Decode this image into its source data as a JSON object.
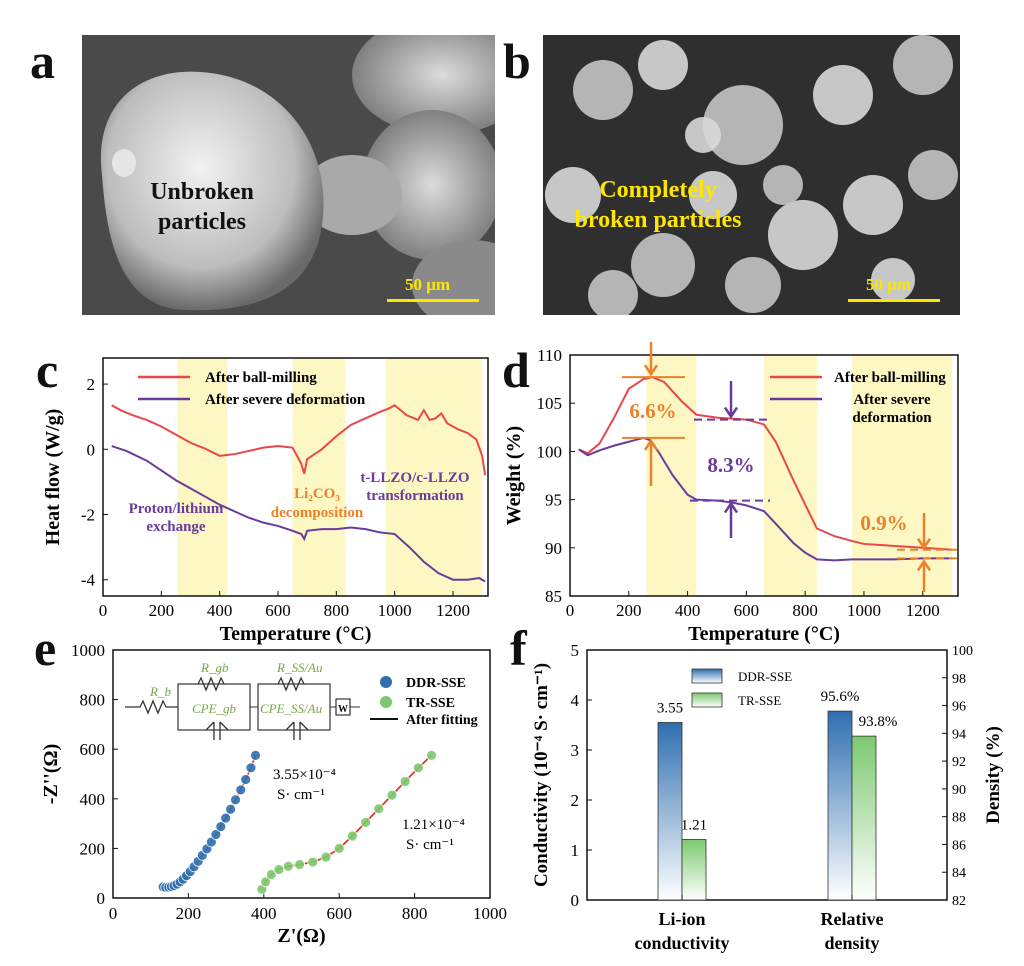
{
  "panels": {
    "a": {
      "letter": "a",
      "label_line1": "Unbroken",
      "label_line2": "particles",
      "scale": "50 μm"
    },
    "b": {
      "letter": "b",
      "label_line1": "Completely",
      "label_line2": "broken particles",
      "scale": "50 μm"
    },
    "c": {
      "letter": "c"
    },
    "d": {
      "letter": "d"
    },
    "e": {
      "letter": "e"
    },
    "f": {
      "letter": "f"
    }
  },
  "colors": {
    "red": "#e8474c",
    "purple": "#6a3b9c",
    "orange": "#e9822b",
    "highlight": "#fdf7c3",
    "blue": "#2f6fb0",
    "green": "#7cc96f",
    "scale_yellow": "#ffe600"
  },
  "chart_data": [
    {
      "panel": "c",
      "type": "line",
      "xlabel": "Temperature (°C)",
      "ylabel": "Heat flow (W/g)",
      "xlim": [
        0,
        1320
      ],
      "ylim": [
        -4.5,
        2.8
      ],
      "xticks": [
        0,
        200,
        400,
        600,
        800,
        1000,
        1200
      ],
      "yticks": [
        2,
        0,
        -2,
        -4
      ],
      "highlight_ranges": [
        [
          255,
          425
        ],
        [
          650,
          830
        ],
        [
          970,
          1300
        ]
      ],
      "annotations": [
        "Proton/lithium",
        "exchange",
        "Li₂CO₃",
        "decomposition",
        "t-LLZO/c-LLZO",
        "transformation"
      ],
      "series": [
        {
          "name": "After ball-milling",
          "color": "#e8474c",
          "x": [
            30,
            60,
            100,
            150,
            200,
            250,
            300,
            350,
            400,
            450,
            500,
            550,
            600,
            650,
            680,
            690,
            700,
            750,
            800,
            850,
            900,
            950,
            980,
            1000,
            1040,
            1080,
            1100,
            1120,
            1140,
            1160,
            1180,
            1200,
            1220,
            1250,
            1280,
            1300,
            1310
          ],
          "y": [
            1.35,
            1.2,
            1.05,
            0.9,
            0.7,
            0.45,
            0.2,
            0.02,
            -0.2,
            -0.15,
            -0.05,
            0.05,
            0.1,
            0.05,
            -0.45,
            -0.75,
            -0.3,
            0.0,
            0.4,
            0.75,
            0.95,
            1.15,
            1.25,
            1.35,
            1.05,
            0.9,
            1.2,
            0.9,
            0.95,
            1.1,
            0.8,
            0.7,
            0.6,
            0.5,
            0.3,
            -0.2,
            -0.8
          ]
        },
        {
          "name": "After severe deformation",
          "color": "#6a3b9c",
          "x": [
            30,
            80,
            150,
            200,
            250,
            300,
            350,
            400,
            450,
            500,
            550,
            600,
            650,
            680,
            690,
            700,
            750,
            800,
            850,
            900,
            950,
            1000,
            1050,
            1100,
            1150,
            1200,
            1250,
            1290,
            1310
          ],
          "y": [
            0.1,
            -0.05,
            -0.35,
            -0.65,
            -0.95,
            -1.2,
            -1.45,
            -1.7,
            -1.9,
            -2.1,
            -2.25,
            -2.35,
            -2.5,
            -2.6,
            -2.75,
            -2.5,
            -2.45,
            -2.45,
            -2.4,
            -2.45,
            -2.55,
            -2.6,
            -3.0,
            -3.45,
            -3.8,
            -4.0,
            -4.0,
            -3.95,
            -4.05
          ]
        }
      ]
    },
    {
      "panel": "d",
      "type": "line",
      "xlabel": "Temperature (°C)",
      "ylabel": "Weight (%)",
      "xlim": [
        0,
        1320
      ],
      "ylim": [
        85,
        110
      ],
      "xticks": [
        0,
        200,
        400,
        600,
        800,
        1000,
        1200
      ],
      "yticks": [
        85,
        90,
        95,
        100,
        105,
        110
      ],
      "highlight_ranges": [
        [
          260,
          430
        ],
        [
          660,
          840
        ],
        [
          960,
          1300
        ]
      ],
      "annotations": [
        "6.6%",
        "8.3%",
        "0.9%"
      ],
      "series": [
        {
          "name": "After ball-milling",
          "color": "#e8474c",
          "x": [
            30,
            60,
            100,
            150,
            200,
            250,
            280,
            320,
            380,
            430,
            500,
            600,
            660,
            700,
            760,
            800,
            840,
            900,
            960,
            1000,
            1100,
            1200,
            1300
          ],
          "y": [
            100.2,
            99.8,
            100.8,
            103.5,
            106.5,
            107.5,
            107.7,
            107.2,
            105.2,
            103.8,
            103.5,
            103.3,
            102.8,
            101.0,
            97.0,
            94.5,
            92.0,
            91.2,
            90.7,
            90.4,
            90.2,
            90.0,
            89.8
          ]
        },
        {
          "name": "After severe deformation",
          "color": "#6a3b9c",
          "x": [
            30,
            60,
            100,
            150,
            200,
            250,
            270,
            300,
            350,
            400,
            430,
            500,
            550,
            600,
            660,
            700,
            760,
            800,
            840,
            900,
            960,
            1000,
            1100,
            1200,
            1300
          ],
          "y": [
            100.2,
            99.6,
            100.1,
            100.6,
            101.0,
            101.4,
            101.2,
            100.0,
            97.5,
            95.5,
            95.0,
            94.9,
            94.7,
            94.4,
            93.8,
            92.5,
            90.5,
            89.5,
            88.8,
            88.7,
            88.8,
            88.8,
            88.8,
            88.9,
            88.9
          ]
        }
      ]
    },
    {
      "panel": "e",
      "type": "scatter",
      "xlabel": "Z'(Ω)",
      "ylabel": "-Z''(Ω)",
      "xlim": [
        0,
        1000
      ],
      "ylim": [
        0,
        1000
      ],
      "xticks": [
        0,
        200,
        400,
        600,
        800,
        1000
      ],
      "yticks": [
        0,
        200,
        400,
        600,
        800,
        1000
      ],
      "circuit_labels": [
        "R_b",
        "R_gb",
        "CPE_gb",
        "R_SS/Au",
        "CPE_SS/Au",
        "W"
      ],
      "annotations": [
        "3.55×10⁻⁴",
        "S· cm⁻¹",
        "1.21×10⁻⁴",
        "S· cm⁻¹"
      ],
      "series": [
        {
          "name": "DDR-SSE",
          "color": "#2f6fb0",
          "x": [
            133,
            140,
            148,
            155,
            162,
            170,
            178,
            186,
            195,
            205,
            215,
            226,
            237,
            249,
            261,
            273,
            286,
            299,
            312,
            325,
            339,
            352,
            366,
            378
          ],
          "y": [
            45,
            43,
            44,
            46,
            50,
            56,
            65,
            76,
            90,
            107,
            126,
            148,
            172,
            198,
            226,
            256,
            288,
            322,
            358,
            396,
            436,
            478,
            525,
            575
          ]
        },
        {
          "name": "TR-SSE",
          "color": "#7cc96f",
          "x": [
            395,
            405,
            420,
            440,
            465,
            495,
            530,
            565,
            600,
            635,
            670,
            705,
            740,
            775,
            810,
            845
          ],
          "y": [
            35,
            65,
            95,
            115,
            128,
            135,
            145,
            165,
            200,
            250,
            305,
            360,
            415,
            470,
            525,
            575
          ]
        },
        {
          "name": "After fitting",
          "color": "#111111"
        }
      ]
    },
    {
      "panel": "f",
      "type": "bar",
      "ylabel_left": "Conductivity (10⁻⁴ S· cm⁻¹)",
      "ylabel_right": "Density (%)",
      "ylim_left": [
        0,
        5
      ],
      "ylim_right": [
        82,
        100
      ],
      "yticks_left": [
        0,
        1,
        2,
        3,
        4,
        5
      ],
      "yticks_right": [
        82,
        84,
        86,
        88,
        90,
        92,
        94,
        96,
        98,
        100
      ],
      "categories": [
        [
          "Li-ion",
          "conductivity"
        ],
        [
          "Relative",
          "density"
        ]
      ],
      "series": [
        {
          "name": "DDR-SSE",
          "values": [
            3.55,
            95.6
          ],
          "labels": [
            "3.55",
            "95.6%"
          ]
        },
        {
          "name": "TR-SSE",
          "values": [
            1.21,
            93.8
          ],
          "labels": [
            "1.21",
            "93.8%"
          ]
        }
      ]
    }
  ]
}
